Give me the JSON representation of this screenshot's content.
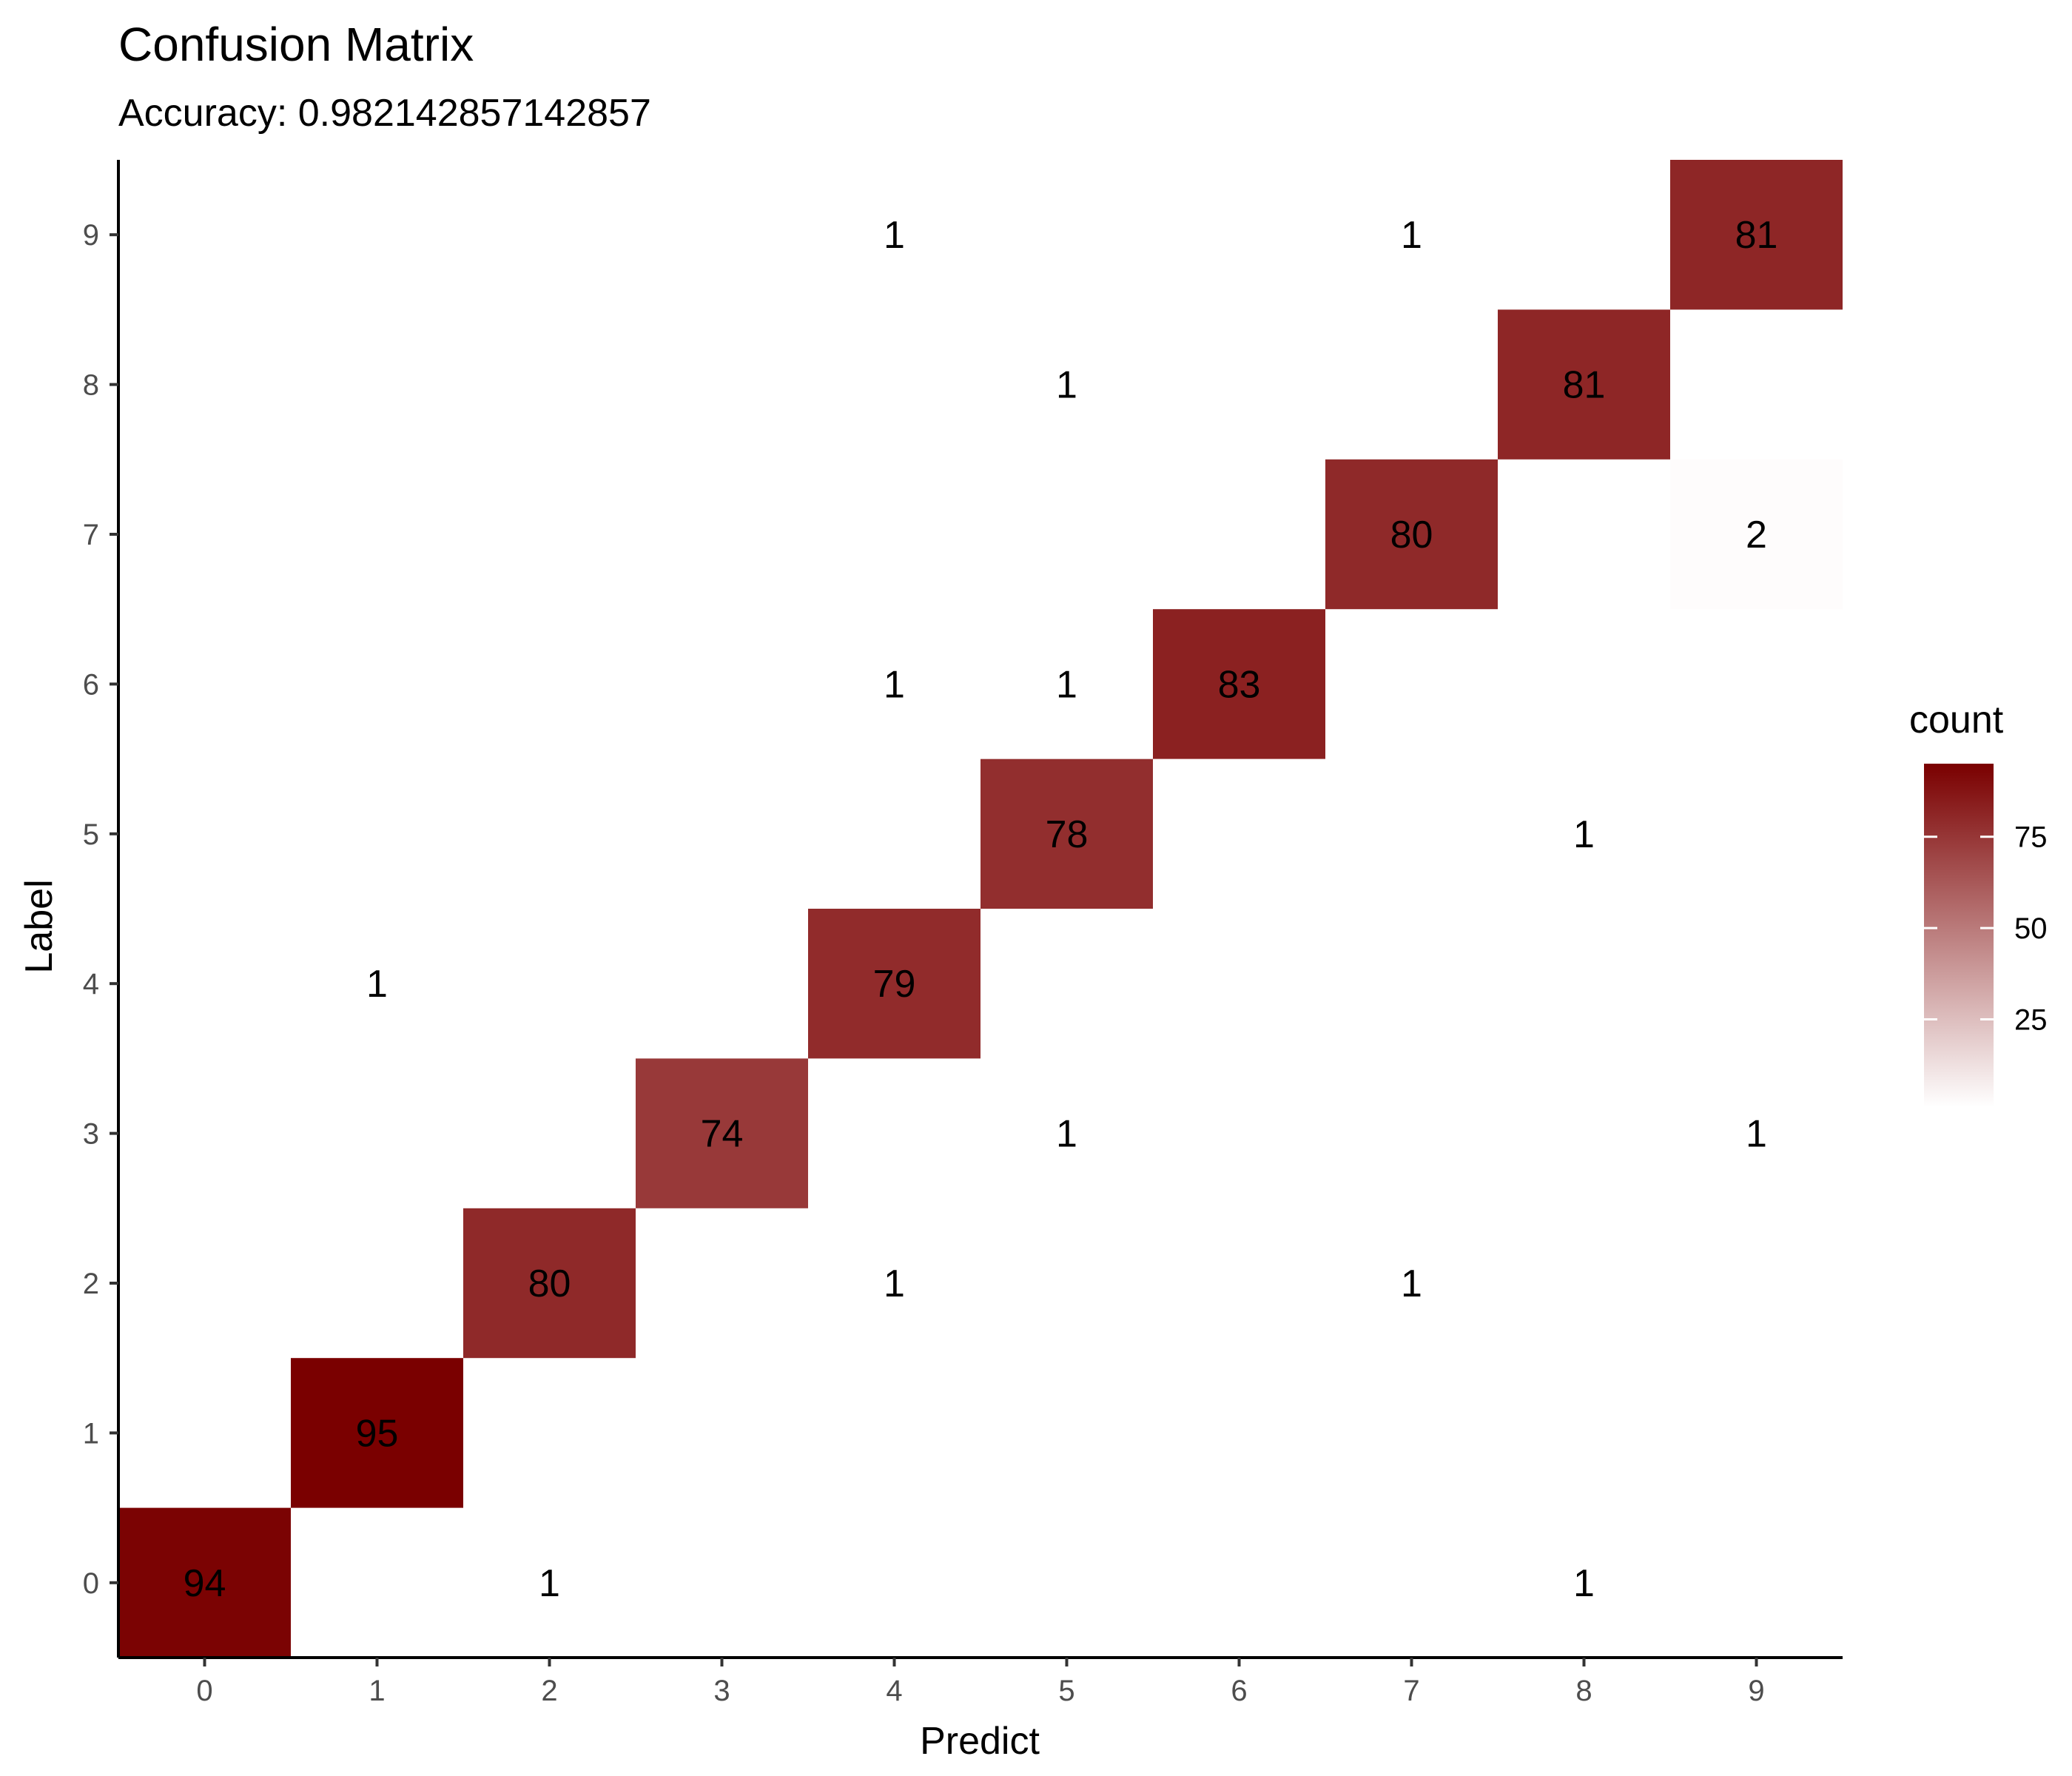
{
  "chart_data": {
    "type": "heatmap",
    "title": "Confusion Matrix",
    "subtitle": "Accuracy: 0.982142857142857",
    "xlabel": "Predict",
    "ylabel": "Label",
    "x_categories": [
      "0",
      "1",
      "2",
      "3",
      "4",
      "5",
      "6",
      "7",
      "8",
      "9"
    ],
    "y_categories": [
      "0",
      "1",
      "2",
      "3",
      "4",
      "5",
      "6",
      "7",
      "8",
      "9"
    ],
    "cells": [
      {
        "label": "0",
        "predict": "0",
        "count": 94
      },
      {
        "label": "0",
        "predict": "2",
        "count": 1
      },
      {
        "label": "0",
        "predict": "8",
        "count": 1
      },
      {
        "label": "1",
        "predict": "1",
        "count": 95
      },
      {
        "label": "2",
        "predict": "2",
        "count": 80
      },
      {
        "label": "2",
        "predict": "4",
        "count": 1
      },
      {
        "label": "2",
        "predict": "7",
        "count": 1
      },
      {
        "label": "3",
        "predict": "3",
        "count": 74
      },
      {
        "label": "3",
        "predict": "5",
        "count": 1
      },
      {
        "label": "3",
        "predict": "9",
        "count": 1
      },
      {
        "label": "4",
        "predict": "1",
        "count": 1
      },
      {
        "label": "4",
        "predict": "4",
        "count": 79
      },
      {
        "label": "5",
        "predict": "5",
        "count": 78
      },
      {
        "label": "5",
        "predict": "8",
        "count": 1
      },
      {
        "label": "6",
        "predict": "4",
        "count": 1
      },
      {
        "label": "6",
        "predict": "5",
        "count": 1
      },
      {
        "label": "6",
        "predict": "6",
        "count": 83
      },
      {
        "label": "7",
        "predict": "7",
        "count": 80
      },
      {
        "label": "7",
        "predict": "9",
        "count": 2
      },
      {
        "label": "8",
        "predict": "5",
        "count": 1
      },
      {
        "label": "8",
        "predict": "8",
        "count": 81
      },
      {
        "label": "9",
        "predict": "4",
        "count": 1
      },
      {
        "label": "9",
        "predict": "7",
        "count": 1
      },
      {
        "label": "9",
        "predict": "9",
        "count": 81
      }
    ],
    "legend": {
      "title": "count",
      "ticks": [
        25,
        50,
        75
      ],
      "range": [
        1,
        95
      ],
      "color_low": "#ffffff",
      "color_high": "#7a0000",
      "placement": "right"
    },
    "grid": false
  }
}
